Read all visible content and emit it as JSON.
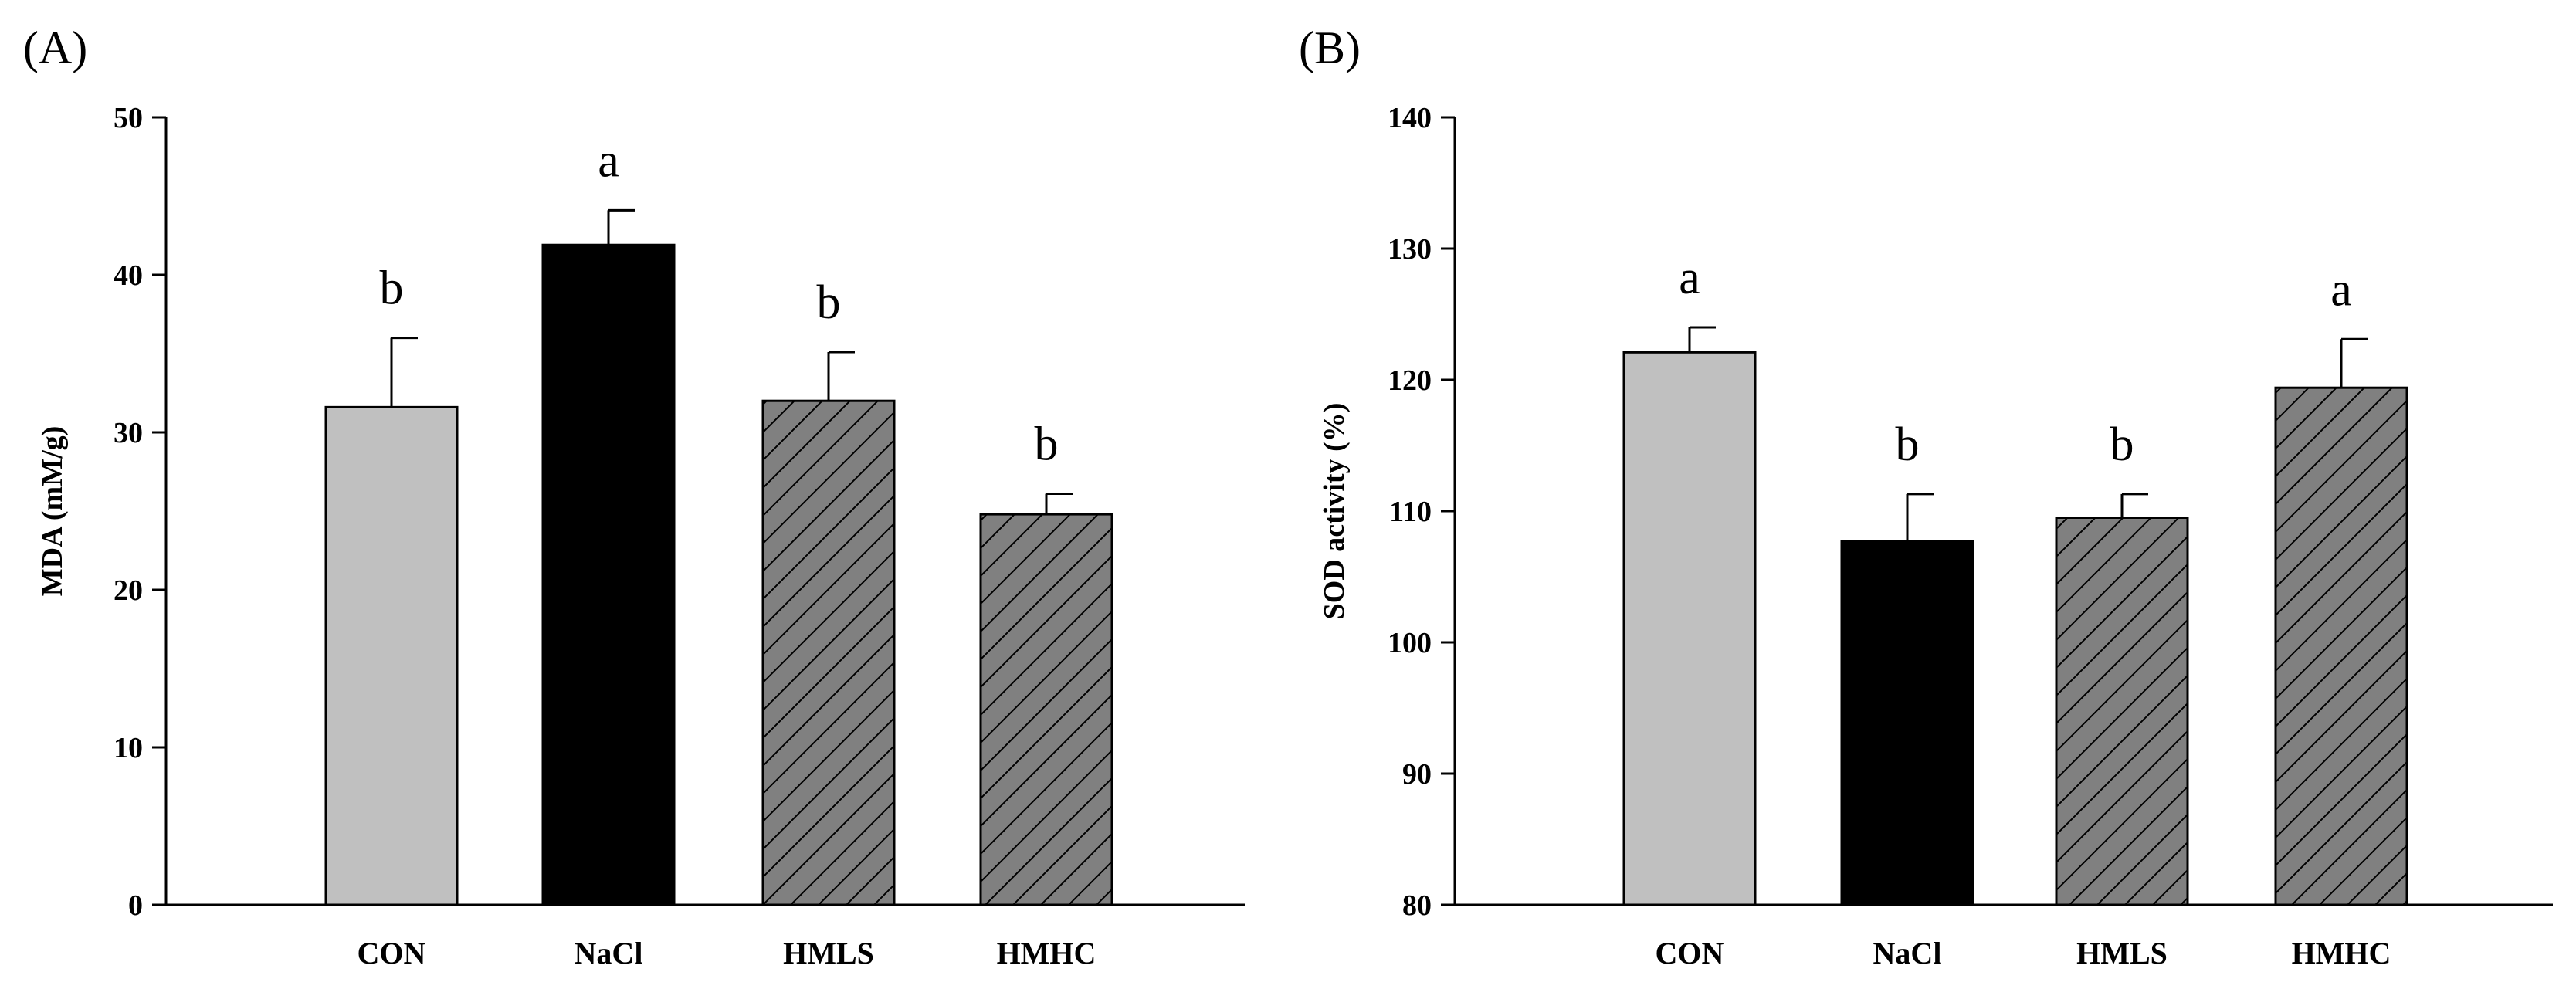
{
  "chart_data": [
    {
      "type": "bar",
      "panel_label": "(A)",
      "title": "",
      "xlabel": "",
      "ylabel": "MDA (mM/g)",
      "ylim": [
        0,
        50
      ],
      "yticks": [
        "0",
        "10",
        "20",
        "30",
        "40",
        "50"
      ],
      "grid": false,
      "categories": [
        "CON",
        "NaCl",
        "HMLS",
        "HMHC"
      ],
      "values": [
        31.6,
        41.9,
        32.0,
        24.8
      ],
      "errors": [
        4.4,
        2.2,
        3.1,
        1.3
      ],
      "significance": [
        "b",
        "a",
        "b",
        "b"
      ],
      "fills": [
        "light-gray",
        "black",
        "gray-hatched",
        "gray-hatched"
      ]
    },
    {
      "type": "bar",
      "panel_label": "(B)",
      "title": "",
      "xlabel": "",
      "ylabel": "SOD activity (%)",
      "ylim": [
        80,
        140
      ],
      "yticks": [
        "80",
        "90",
        "100",
        "110",
        "120",
        "130",
        "140"
      ],
      "grid": false,
      "categories": [
        "CON",
        "NaCl",
        "HMLS",
        "HMHC"
      ],
      "values": [
        122.1,
        107.7,
        109.5,
        119.4
      ],
      "errors": [
        1.9,
        3.6,
        1.8,
        3.7
      ],
      "significance": [
        "a",
        "b",
        "b",
        "a"
      ],
      "fills": [
        "light-gray",
        "black",
        "gray-hatched",
        "gray-hatched"
      ]
    }
  ],
  "colors": {
    "light-gray": "#c0c0c0",
    "black": "#000000",
    "gray-hatched": "#808080",
    "axis": "#000000"
  }
}
